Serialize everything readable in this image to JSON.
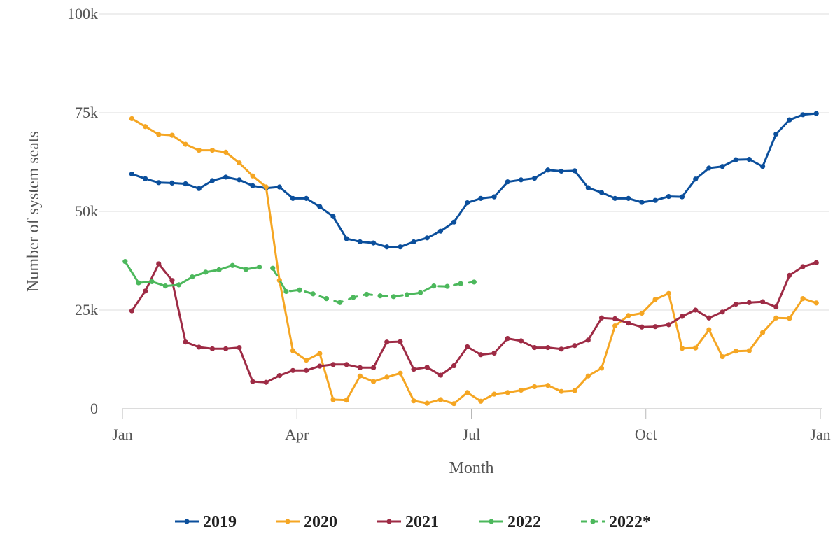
{
  "chart_data": {
    "type": "line",
    "title": "",
    "xlabel": "Month",
    "ylabel": "Number of system seats",
    "xlim": [
      1,
      53
    ],
    "ylim": [
      0,
      100000
    ],
    "x_ticks": [
      {
        "label": "Jan",
        "week": 1
      },
      {
        "label": "Apr",
        "week": 14
      },
      {
        "label": "Jul",
        "week": 27
      },
      {
        "label": "Oct",
        "week": 40
      },
      {
        "label": "Jan",
        "week": 53
      }
    ],
    "y_ticks": [
      {
        "label": "0",
        "value": 0
      },
      {
        "label": "25k",
        "value": 25000
      },
      {
        "label": "50k",
        "value": 50000
      },
      {
        "label": "75k",
        "value": 75000
      },
      {
        "label": "100k",
        "value": 100000
      }
    ],
    "grid": "horizontal",
    "legend_position": "bottom",
    "series": [
      {
        "name": "2019",
        "color": "#0b4f9c",
        "dashed": false,
        "x": [
          1.7,
          2.7,
          3.7,
          4.7,
          5.7,
          6.7,
          7.7,
          8.7,
          9.7,
          10.7,
          11.7,
          12.7,
          13.7,
          14.7,
          15.7,
          16.7,
          17.7,
          18.7,
          19.7,
          20.7,
          21.7,
          22.7,
          23.7,
          24.7,
          25.7,
          26.7,
          27.7,
          28.7,
          29.7,
          30.7,
          31.7,
          32.7,
          33.7,
          34.7,
          35.7,
          36.7,
          37.7,
          38.7,
          39.7,
          40.7,
          41.7,
          42.7,
          43.7,
          44.7,
          45.7,
          46.7,
          47.7,
          48.7,
          49.7,
          50.7,
          51.7,
          52.7
        ],
        "y": [
          59500,
          58300,
          57300,
          57200,
          57000,
          55800,
          57800,
          58700,
          58000,
          56500,
          55900,
          56200,
          53300,
          53300,
          51200,
          48700,
          43100,
          42300,
          42000,
          41000,
          41000,
          42300,
          43300,
          45000,
          47300,
          52200,
          53300,
          53700,
          57500,
          58000,
          58400,
          60500,
          60200,
          60300,
          56000,
          54800,
          53300,
          53300,
          52300,
          52800,
          53800,
          53700,
          58200,
          61000,
          61400,
          63100,
          63200,
          61400,
          69600,
          73200,
          74500,
          74800
        ]
      },
      {
        "name": "2020",
        "color": "#f5a623",
        "dashed": false,
        "x": [
          1.7,
          2.7,
          3.7,
          4.7,
          5.7,
          6.7,
          7.7,
          8.7,
          9.7,
          10.7,
          11.7,
          12.7,
          13.7,
          14.7,
          15.7,
          16.7,
          17.7,
          18.7,
          19.7,
          20.7,
          21.7,
          22.7,
          23.7,
          24.7,
          25.7,
          26.7,
          27.7,
          28.7,
          29.7,
          30.7,
          31.7,
          32.7,
          33.7,
          34.7,
          35.7,
          36.7,
          37.7,
          38.7,
          39.7,
          40.7,
          41.7,
          42.7,
          43.7,
          44.7,
          45.7,
          46.7,
          47.7,
          48.7,
          49.7,
          50.7,
          51.7,
          52.7
        ],
        "y": [
          73500,
          71500,
          69500,
          69300,
          67000,
          65500,
          65500,
          65000,
          62300,
          59000,
          56200,
          32500,
          14700,
          12300,
          14000,
          2300,
          2200,
          8300,
          6900,
          8000,
          9000,
          2000,
          1400,
          2300,
          1300,
          4100,
          1900,
          3700,
          4100,
          4700,
          5600,
          5900,
          4400,
          4600,
          8300,
          10300,
          21000,
          23600,
          24200,
          27700,
          29200,
          15300,
          15400,
          20000,
          13200,
          14600,
          14700,
          19300,
          23000,
          22900,
          27900,
          26800
        ]
      },
      {
        "name": "2021",
        "color": "#9e2b45",
        "dashed": false,
        "x": [
          1.7,
          2.7,
          3.7,
          4.7,
          5.7,
          6.7,
          7.7,
          8.7,
          9.7,
          10.7,
          11.7,
          12.7,
          13.7,
          14.7,
          15.7,
          16.7,
          17.7,
          18.7,
          19.7,
          20.7,
          21.7,
          22.7,
          23.7,
          24.7,
          25.7,
          26.7,
          27.7,
          28.7,
          29.7,
          30.7,
          31.7,
          32.7,
          33.7,
          34.7,
          35.7,
          36.7,
          37.7,
          38.7,
          39.7,
          40.7,
          41.7,
          42.7,
          43.7,
          44.7,
          45.7,
          46.7,
          47.7,
          48.7,
          49.7,
          50.7,
          51.7,
          52.7
        ],
        "y": [
          24800,
          29800,
          36700,
          32500,
          16900,
          15600,
          15200,
          15200,
          15500,
          6900,
          6700,
          8400,
          9700,
          9700,
          10800,
          11200,
          11200,
          10400,
          10400,
          16900,
          17000,
          10000,
          10500,
          8500,
          10900,
          15700,
          13700,
          14100,
          17800,
          17200,
          15500,
          15500,
          15100,
          16000,
          17400,
          23000,
          22800,
          21700,
          20700,
          20800,
          21300,
          23400,
          25000,
          23000,
          24500,
          26500,
          26900,
          27100,
          25800,
          33800,
          36000,
          37000
        ]
      },
      {
        "name": "2022",
        "color": "#4cb85c",
        "dashed": false,
        "x": [
          1.2,
          2.2,
          3.2,
          4.2,
          5.2,
          6.2,
          7.2,
          8.2,
          9.2,
          10.2,
          11.2
        ],
        "y": [
          37300,
          31900,
          32200,
          31100,
          31400,
          33400,
          34600,
          35200,
          36300,
          35300,
          35900
        ]
      },
      {
        "name": "2022*",
        "color": "#4cb85c",
        "dashed": true,
        "x": [
          12.2,
          13.2,
          14.2,
          15.2,
          16.2,
          17.2,
          18.2,
          19.2,
          20.2,
          21.2,
          22.2,
          23.2,
          24.2,
          25.2,
          26.2,
          27.2
        ],
        "y": [
          35600,
          29700,
          30100,
          29100,
          27900,
          26900,
          28200,
          29000,
          28600,
          28400,
          28900,
          29400,
          31100,
          31000,
          31700,
          32100
        ]
      }
    ]
  }
}
